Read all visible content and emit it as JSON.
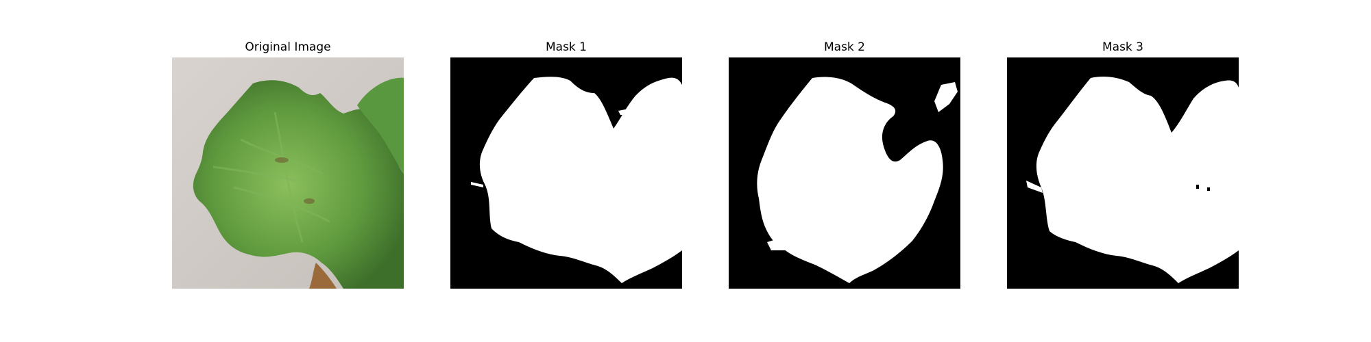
{
  "figure": {
    "panels": [
      {
        "title": "Original Image",
        "kind": "photo",
        "subject": "leaf"
      },
      {
        "title": "Mask 1",
        "kind": "mask"
      },
      {
        "title": "Mask 2",
        "kind": "mask"
      },
      {
        "title": "Mask 3",
        "kind": "mask"
      }
    ]
  },
  "colors": {
    "background": "#ffffff",
    "mask_background": "#000000",
    "mask_foreground": "#ffffff",
    "leaf_green": "#5f9a3e",
    "leaf_light": "#8cbf5c",
    "leaf_dark": "#2f5a22",
    "backdrop": "#cfcac6"
  }
}
